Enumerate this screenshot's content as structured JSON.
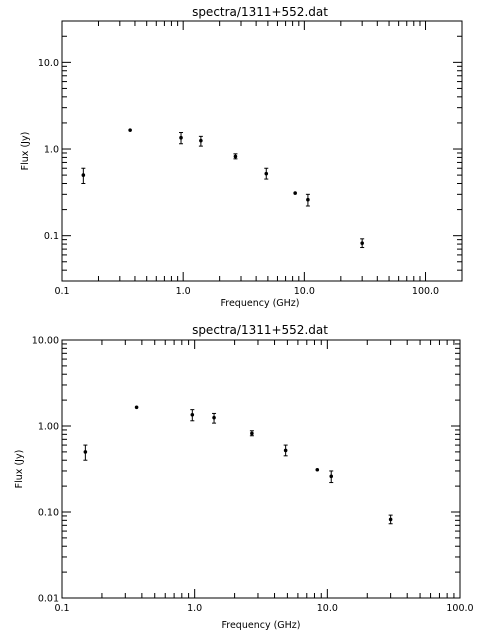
{
  "chart_data": [
    {
      "type": "scatter",
      "title": "spectra/1311+552.dat",
      "xlabel": "Frequency (GHz)",
      "ylabel": "Flux (Jy)",
      "xscale": "log",
      "yscale": "log",
      "xlim": [
        0.1,
        200
      ],
      "ylim": [
        0.03,
        30
      ],
      "xticks": [
        {
          "v": 0.1,
          "label": "0.1"
        },
        {
          "v": 1,
          "label": "1.0"
        },
        {
          "v": 10,
          "label": "10.0"
        },
        {
          "v": 100,
          "label": "100.0"
        }
      ],
      "yticks": [
        {
          "v": 0.1,
          "label": "0.1"
        },
        {
          "v": 1,
          "label": "1.0"
        },
        {
          "v": 10,
          "label": "10.0"
        }
      ],
      "grid": false,
      "points": [
        {
          "x": 0.15,
          "y": 0.5,
          "lo": 0.4,
          "hi": 0.6
        },
        {
          "x": 0.365,
          "y": 1.65,
          "lo": 1.58,
          "hi": 1.72
        },
        {
          "x": 0.96,
          "y": 1.35,
          "lo": 1.15,
          "hi": 1.55
        },
        {
          "x": 1.4,
          "y": 1.25,
          "lo": 1.08,
          "hi": 1.4
        },
        {
          "x": 2.7,
          "y": 0.82,
          "lo": 0.77,
          "hi": 0.88
        },
        {
          "x": 4.85,
          "y": 0.52,
          "lo": 0.45,
          "hi": 0.6
        },
        {
          "x": 8.4,
          "y": 0.31,
          "lo": 0.3,
          "hi": 0.32
        },
        {
          "x": 10.7,
          "y": 0.26,
          "lo": 0.22,
          "hi": 0.3
        },
        {
          "x": 30.0,
          "y": 0.082,
          "lo": 0.073,
          "hi": 0.092
        }
      ]
    },
    {
      "type": "scatter",
      "title": "spectra/1311+552.dat",
      "xlabel": "Frequency (GHz)",
      "ylabel": "Flux (Jy)",
      "xscale": "log",
      "yscale": "log",
      "xlim": [
        0.1,
        100
      ],
      "ylim": [
        0.01,
        10
      ],
      "xticks": [
        {
          "v": 0.1,
          "label": "0.1"
        },
        {
          "v": 1,
          "label": "1.0"
        },
        {
          "v": 10,
          "label": "10.0"
        },
        {
          "v": 100,
          "label": "100.0"
        }
      ],
      "yticks": [
        {
          "v": 0.01,
          "label": "0.01"
        },
        {
          "v": 0.1,
          "label": "0.10"
        },
        {
          "v": 1,
          "label": "1.00"
        },
        {
          "v": 10,
          "label": "10.00"
        }
      ],
      "grid": false,
      "points": [
        {
          "x": 0.15,
          "y": 0.5,
          "lo": 0.4,
          "hi": 0.6
        },
        {
          "x": 0.365,
          "y": 1.65,
          "lo": 1.58,
          "hi": 1.72
        },
        {
          "x": 0.96,
          "y": 1.35,
          "lo": 1.15,
          "hi": 1.55
        },
        {
          "x": 1.4,
          "y": 1.25,
          "lo": 1.08,
          "hi": 1.4
        },
        {
          "x": 2.7,
          "y": 0.82,
          "lo": 0.77,
          "hi": 0.88
        },
        {
          "x": 4.85,
          "y": 0.52,
          "lo": 0.45,
          "hi": 0.6
        },
        {
          "x": 8.4,
          "y": 0.31,
          "lo": 0.3,
          "hi": 0.32
        },
        {
          "x": 10.7,
          "y": 0.26,
          "lo": 0.22,
          "hi": 0.3
        },
        {
          "x": 30.0,
          "y": 0.082,
          "lo": 0.073,
          "hi": 0.092
        }
      ]
    }
  ]
}
